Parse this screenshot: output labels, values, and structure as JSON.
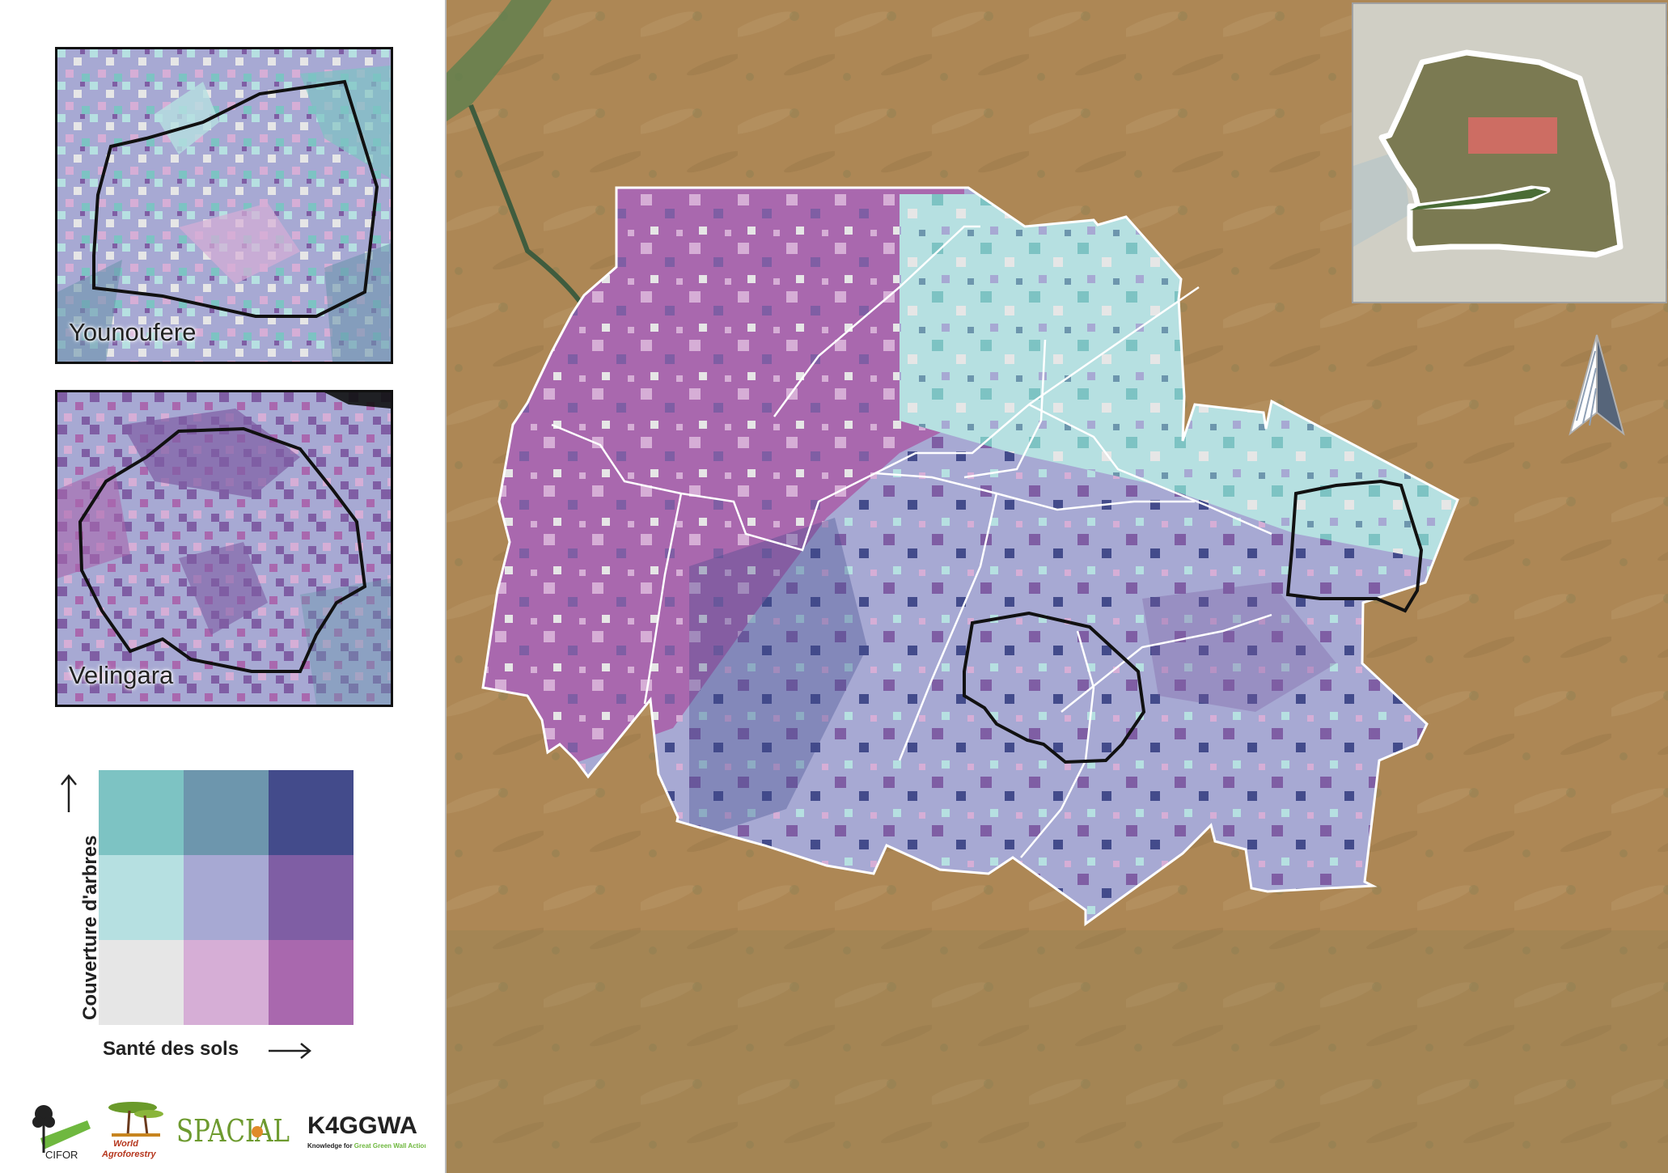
{
  "zooms": [
    {
      "label": "Younoufere"
    },
    {
      "label": "Velingara"
    }
  ],
  "legend": {
    "y_label": "Couverture d'arbres",
    "x_label": "Santé des sols",
    "colors": [
      [
        "#7dc3c3",
        "#6d96ad",
        "#434b8b"
      ],
      [
        "#b6e0e1",
        "#a7a9d3",
        "#7f5ea4"
      ],
      [
        "#e6e6e6",
        "#d6aed6",
        "#a968ae"
      ]
    ]
  },
  "logos": {
    "cifor": "CIFOR",
    "world_agro_1": "World",
    "world_agro_2": "Agroforestry",
    "spacial": "SPACIAL",
    "k4ggwa": "K4GGWA",
    "k4ggwa_tagline_a": "Knowledge for ",
    "k4ggwa_tagline_b": "Great Green Wall Action"
  },
  "colors": {
    "satellite": "#ad8755",
    "inset_highlight": "#e86a6a",
    "outline": "#ffffff"
  },
  "icons": [
    "north-arrow-icon",
    "up-arrow-icon",
    "right-arrow-icon"
  ]
}
